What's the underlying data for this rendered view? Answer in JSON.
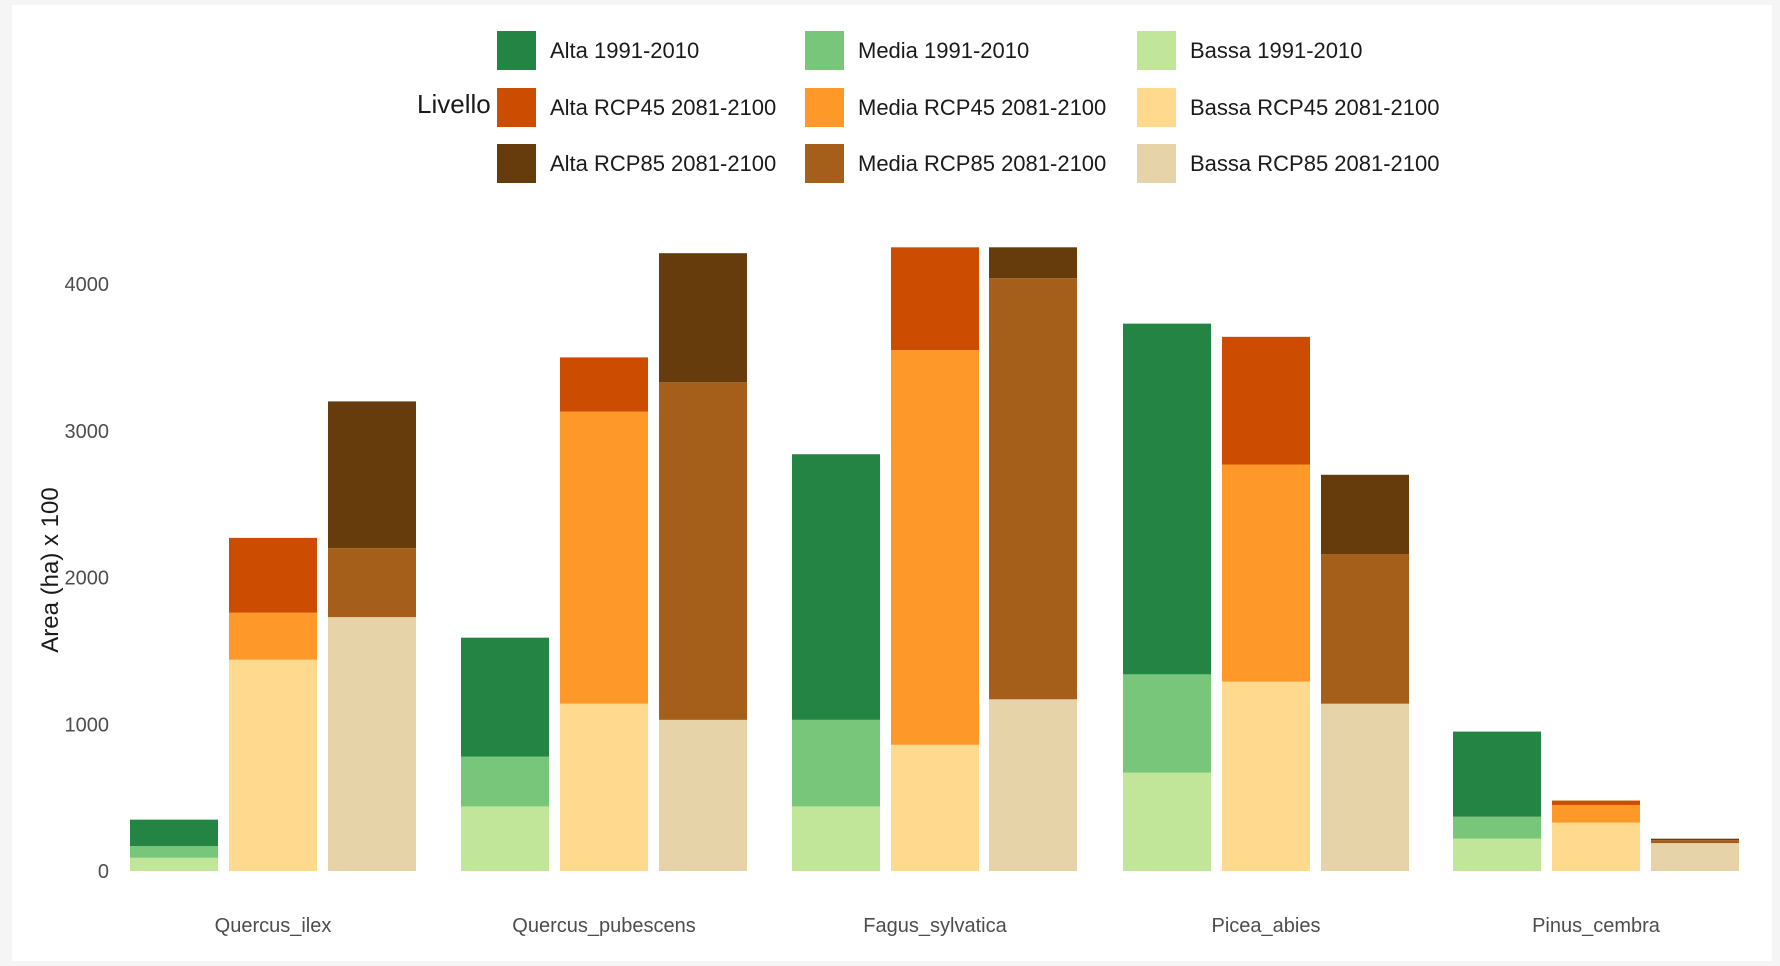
{
  "chart_data": {
    "type": "bar",
    "stacked": true,
    "grid": false,
    "legend_position": "top",
    "legend": {
      "title": "Livello",
      "entries": [
        {
          "name": "Alta 1991-2010",
          "color": "#238443"
        },
        {
          "name": "Alta RCP45 2081-2100",
          "color": "#cc4c02"
        },
        {
          "name": "Alta RCP85 2081-2100",
          "color": "#663c0c"
        },
        {
          "name": "Media 1991-2010",
          "color": "#78c679"
        },
        {
          "name": "Media RCP45 2081-2100",
          "color": "#fe9929"
        },
        {
          "name": "Media RCP85 2081-2100",
          "color": "#a65f1a"
        },
        {
          "name": "Bassa 1991-2010",
          "color": "#c2e699"
        },
        {
          "name": "Bassa RCP45 2081-2100",
          "color": "#fed98e"
        },
        {
          "name": "Bassa RCP85 2081-2100",
          "color": "#e6d3a7"
        }
      ]
    },
    "ylabel": "Area (ha) x 100",
    "xlabel": "",
    "ylim": [
      0,
      4400
    ],
    "yticks": [
      0,
      1000,
      2000,
      3000,
      4000
    ],
    "categories": [
      "Quercus_ilex",
      "Quercus_pubescens",
      "Fagus_sylvatica",
      "Picea_abies",
      "Pinus_cembra"
    ],
    "scenarios": [
      "1991-2010",
      "RCP45 2081-2100",
      "RCP85 2081-2100"
    ],
    "groups": [
      {
        "category": "Quercus_ilex",
        "bars": [
          {
            "scenario": "1991-2010",
            "bassa": 90,
            "media": 80,
            "alta": 180
          },
          {
            "scenario": "RCP45 2081-2100",
            "bassa": 1440,
            "media": 320,
            "alta": 510
          },
          {
            "scenario": "RCP85 2081-2100",
            "bassa": 1730,
            "media": 470,
            "alta": 1000
          }
        ]
      },
      {
        "category": "Quercus_pubescens",
        "bars": [
          {
            "scenario": "1991-2010",
            "bassa": 440,
            "media": 340,
            "alta": 810
          },
          {
            "scenario": "RCP45 2081-2100",
            "bassa": 1140,
            "media": 1990,
            "alta": 370
          },
          {
            "scenario": "RCP85 2081-2100",
            "bassa": 1030,
            "media": 2300,
            "alta": 880
          }
        ]
      },
      {
        "category": "Fagus_sylvatica",
        "bars": [
          {
            "scenario": "1991-2010",
            "bassa": 440,
            "media": 590,
            "alta": 1810
          },
          {
            "scenario": "RCP45 2081-2100",
            "bassa": 860,
            "media": 2690,
            "alta": 700
          },
          {
            "scenario": "RCP85 2081-2100",
            "bassa": 1170,
            "media": 2870,
            "alta": 210
          }
        ]
      },
      {
        "category": "Picea_abies",
        "bars": [
          {
            "scenario": "1991-2010",
            "bassa": 670,
            "media": 670,
            "alta": 2390
          },
          {
            "scenario": "RCP45 2081-2100",
            "bassa": 1290,
            "media": 1480,
            "alta": 870
          },
          {
            "scenario": "RCP85 2081-2100",
            "bassa": 1140,
            "media": 1020,
            "alta": 540
          }
        ]
      },
      {
        "category": "Pinus_cembra",
        "bars": [
          {
            "scenario": "1991-2010",
            "bassa": 220,
            "media": 150,
            "alta": 580
          },
          {
            "scenario": "RCP45 2081-2100",
            "bassa": 330,
            "media": 120,
            "alta": 30
          },
          {
            "scenario": "RCP85 2081-2100",
            "bassa": 190,
            "media": 20,
            "alta": 10
          }
        ]
      }
    ]
  }
}
